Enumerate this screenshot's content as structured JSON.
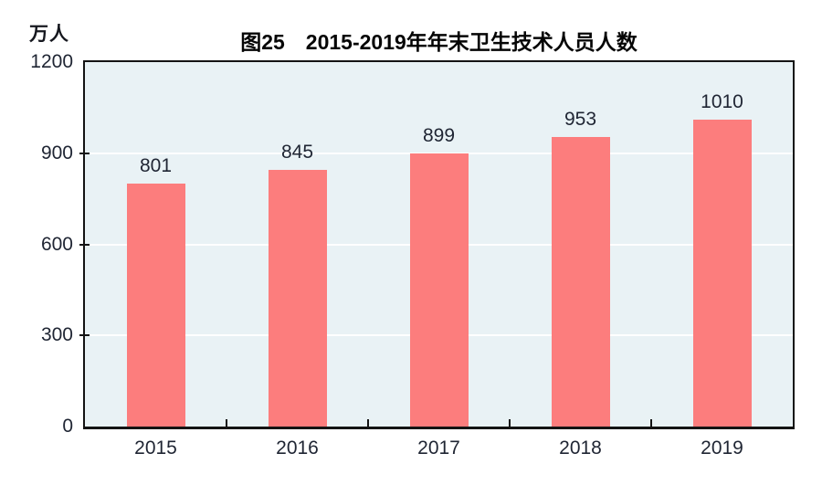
{
  "figure": {
    "unit_label": "万人"
  },
  "colors": {
    "bar_fill": "#fc7d7d",
    "plot_background": "#e9f2f5",
    "gridline": "#ffffff",
    "axis_border": "#141414",
    "label_text": "#1f2533",
    "title_text": "#050505",
    "page_background": "#ffffff"
  },
  "chart_data": {
    "type": "bar",
    "title": "图25　2015-2019年年末卫生技术人员人数",
    "xlabel": "",
    "ylabel": "万人",
    "categories": [
      "2015",
      "2016",
      "2017",
      "2018",
      "2019"
    ],
    "values": [
      801,
      845,
      899,
      953,
      1010
    ],
    "data_labels": [
      "801",
      "845",
      "899",
      "953",
      "1010"
    ],
    "ylim": [
      0,
      1200
    ],
    "yticks": [
      0,
      300,
      600,
      900,
      1200
    ],
    "grid": "horizontal",
    "legend": "none"
  }
}
